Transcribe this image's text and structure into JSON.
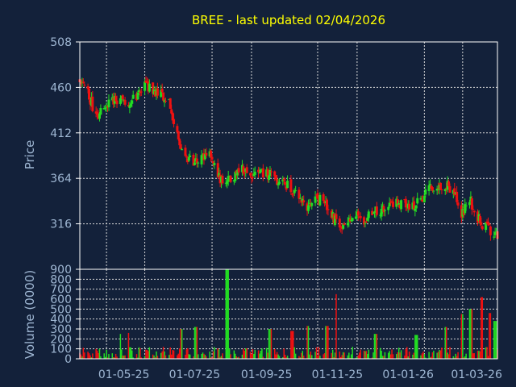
{
  "colors": {
    "background": "#13213a",
    "axis": "#ffffff",
    "grid": "#d8d8d8",
    "text": "#9fb7d3",
    "title": "#ffff00",
    "up": "#22dd22",
    "down": "#ee1111"
  },
  "chart_data": {
    "type": "candlestick",
    "title": "BREE - last updated 02/04/2026",
    "price_panel": {
      "ylabel": "Price",
      "ylim": [
        268,
        508
      ],
      "yticks": [
        316,
        364,
        412,
        460,
        508
      ],
      "ytick_labels": [
        "316",
        "364",
        "412",
        "460",
        "508"
      ],
      "grid": true
    },
    "volume_panel": {
      "ylabel": "Volume (0000)",
      "ylim": [
        0,
        900
      ],
      "yticks": [
        0,
        100,
        200,
        300,
        400,
        500,
        600,
        700,
        800,
        900
      ],
      "ytick_labels": [
        "0",
        "100",
        "200",
        "300",
        "400",
        "500",
        "600",
        "700",
        "800",
        "900"
      ],
      "grid": true
    },
    "x_axis": {
      "range": [
        "2025-04-07",
        "2026-04-02"
      ],
      "gridlines": [
        "2025-04-30",
        "2025-06-02",
        "2025-07-30",
        "2025-09-02",
        "2025-10-29",
        "2025-12-02",
        "2026-01-29",
        "2026-03-03"
      ],
      "ticks": [
        {
          "date": "2025-05-15",
          "label": "01-05-25"
        },
        {
          "date": "2025-07-15",
          "label": "01-07-25"
        },
        {
          "date": "2025-09-15",
          "label": "01-09-25"
        },
        {
          "date": "2025-11-15",
          "label": "01-11-25"
        },
        {
          "date": "2026-01-15",
          "label": "01-01-26"
        },
        {
          "date": "2026-03-15",
          "label": "01-03-26"
        }
      ]
    },
    "price_trend": [
      [
        "2025-04-07",
        470
      ],
      [
        "2025-04-14",
        455
      ],
      [
        "2025-04-21",
        430
      ],
      [
        "2025-04-28",
        440
      ],
      [
        "2025-05-05",
        445
      ],
      [
        "2025-05-12",
        448
      ],
      [
        "2025-05-19",
        440
      ],
      [
        "2025-05-26",
        452
      ],
      [
        "2025-06-02",
        462
      ],
      [
        "2025-06-09",
        458
      ],
      [
        "2025-06-16",
        452
      ],
      [
        "2025-06-23",
        443
      ],
      [
        "2025-06-30",
        410
      ],
      [
        "2025-07-07",
        385
      ],
      [
        "2025-07-14",
        382
      ],
      [
        "2025-07-21",
        386
      ],
      [
        "2025-07-28",
        391
      ],
      [
        "2025-08-04",
        365
      ],
      [
        "2025-08-11",
        362
      ],
      [
        "2025-08-18",
        368
      ],
      [
        "2025-08-25",
        374
      ],
      [
        "2025-09-01",
        370
      ],
      [
        "2025-09-08",
        368
      ],
      [
        "2025-09-15",
        370
      ],
      [
        "2025-09-22",
        364
      ],
      [
        "2025-09-29",
        360
      ],
      [
        "2025-10-06",
        354
      ],
      [
        "2025-10-13",
        345
      ],
      [
        "2025-10-20",
        330
      ],
      [
        "2025-10-27",
        345
      ],
      [
        "2025-11-03",
        338
      ],
      [
        "2025-11-10",
        325
      ],
      [
        "2025-11-17",
        312
      ],
      [
        "2025-11-24",
        322
      ],
      [
        "2025-12-01",
        325
      ],
      [
        "2025-12-08",
        320
      ],
      [
        "2025-12-15",
        328
      ],
      [
        "2025-12-22",
        330
      ],
      [
        "2025-12-29",
        332
      ],
      [
        "2026-01-05",
        337
      ],
      [
        "2026-01-12",
        336
      ],
      [
        "2026-01-19",
        334
      ],
      [
        "2026-01-26",
        343
      ],
      [
        "2026-02-02",
        352
      ],
      [
        "2026-02-09",
        358
      ],
      [
        "2026-02-16",
        357
      ],
      [
        "2026-02-23",
        352
      ],
      [
        "2026-03-02",
        325
      ],
      [
        "2026-03-09",
        342
      ],
      [
        "2026-03-16",
        322
      ],
      [
        "2026-03-23",
        312
      ],
      [
        "2026-04-02",
        303
      ]
    ],
    "volume_spikes": [
      [
        "2025-05-11",
        250
      ],
      [
        "2025-05-18",
        260
      ],
      [
        "2025-07-04",
        300
      ],
      [
        "2025-07-16",
        320
      ],
      [
        "2025-08-12",
        900
      ],
      [
        "2025-09-18",
        300
      ],
      [
        "2025-10-07",
        280
      ],
      [
        "2025-10-20",
        330
      ],
      [
        "2025-11-06",
        330
      ],
      [
        "2025-11-15",
        650
      ],
      [
        "2025-12-18",
        250
      ],
      [
        "2026-01-22",
        240
      ],
      [
        "2026-02-16",
        320
      ],
      [
        "2026-03-02",
        450
      ],
      [
        "2026-03-10",
        500
      ],
      [
        "2026-03-20",
        620
      ],
      [
        "2026-03-27",
        460
      ],
      [
        "2026-03-31",
        380
      ]
    ]
  }
}
